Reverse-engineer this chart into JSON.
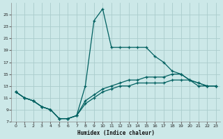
{
  "xlabel": "Humidex (Indice chaleur)",
  "bg_color": "#cce8e8",
  "grid_color": "#aacccc",
  "line_color": "#006060",
  "ylim": [
    7,
    27
  ],
  "xlim": [
    -0.5,
    23.5
  ],
  "yticks": [
    7,
    9,
    11,
    13,
    15,
    17,
    19,
    21,
    23,
    25
  ],
  "xticks": [
    0,
    1,
    2,
    3,
    4,
    5,
    6,
    7,
    8,
    9,
    10,
    11,
    12,
    13,
    14,
    15,
    16,
    17,
    18,
    19,
    20,
    21,
    22,
    23
  ],
  "series1_x": [
    0,
    1,
    2,
    3,
    4,
    5,
    6,
    7,
    8,
    9,
    10,
    11,
    12,
    13,
    14,
    15,
    16,
    17,
    18,
    19,
    20,
    21,
    22,
    23
  ],
  "series1_y": [
    12,
    11,
    10.5,
    9.5,
    9.0,
    7.5,
    7.5,
    8.0,
    13.0,
    24.0,
    26.0,
    19.5,
    19.5,
    19.5,
    19.5,
    19.5,
    18.0,
    17.0,
    15.5,
    15.0,
    14.0,
    13.0,
    13.0,
    13.0
  ],
  "series2_x": [
    0,
    1,
    2,
    3,
    4,
    5,
    6,
    7,
    8,
    9,
    10,
    11,
    12,
    13,
    14,
    15,
    16,
    17,
    18,
    19,
    20,
    21,
    22,
    23
  ],
  "series2_y": [
    12,
    11,
    10.5,
    9.5,
    9.0,
    7.5,
    7.5,
    8.0,
    10.0,
    11.0,
    12.0,
    12.5,
    13.0,
    13.0,
    13.5,
    13.5,
    13.5,
    13.5,
    14.0,
    14.0,
    14.0,
    13.5,
    13.0,
    13.0
  ],
  "series3_x": [
    0,
    1,
    2,
    3,
    4,
    5,
    6,
    7,
    8,
    9,
    10,
    11,
    12,
    13,
    14,
    15,
    16,
    17,
    18,
    19,
    20,
    21,
    22,
    23
  ],
  "series3_y": [
    12,
    11,
    10.5,
    9.5,
    9.0,
    7.5,
    7.5,
    8.0,
    10.5,
    11.5,
    12.5,
    13.0,
    13.5,
    14.0,
    14.0,
    14.5,
    14.5,
    14.5,
    15.0,
    15.0,
    14.0,
    13.5,
    13.0,
    13.0
  ]
}
